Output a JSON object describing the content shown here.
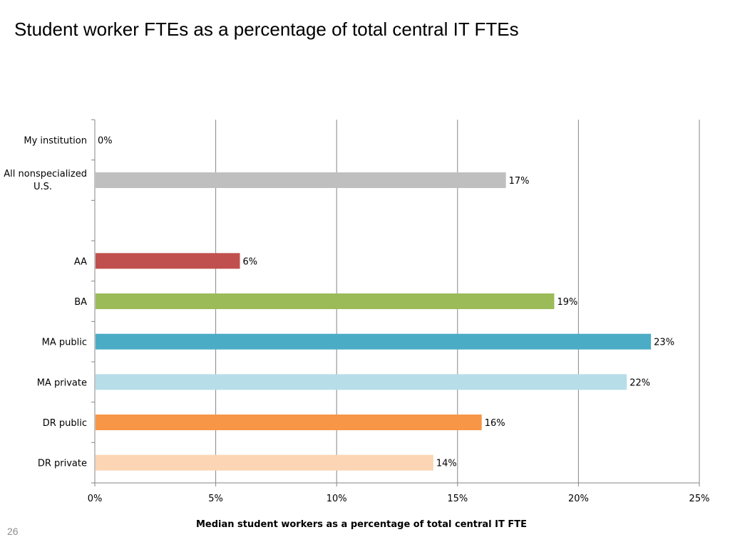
{
  "slide": {
    "title": "Student worker FTEs as a percentage of total central IT FTEs",
    "page_number": "26"
  },
  "chart_data": {
    "type": "bar",
    "orientation": "horizontal",
    "title": "",
    "xlabel": "Median student workers as a percentage of total central IT FTE",
    "ylabel": "",
    "xlim": [
      0,
      25
    ],
    "xticks": [
      "0%",
      "5%",
      "10%",
      "15%",
      "20%",
      "25%"
    ],
    "grid": "vertical gridlines on",
    "legend": "none",
    "categories": [
      "My institution",
      "All nonspecialized U.S.",
      "",
      "AA",
      "BA",
      "MA public",
      "MA private",
      "DR public",
      "DR private"
    ],
    "values": [
      0,
      17,
      null,
      6,
      19,
      23,
      22,
      16,
      14
    ],
    "data_labels": [
      "0%",
      "17%",
      "",
      "6%",
      "19%",
      "23%",
      "22%",
      "16%",
      "14%"
    ],
    "colors": [
      "#c0c0c0",
      "#bfbfbf",
      "#ffffff",
      "#c0504d",
      "#9bbb59",
      "#4bacc6",
      "#b7dee8",
      "#f79646",
      "#fcd5b5"
    ]
  }
}
